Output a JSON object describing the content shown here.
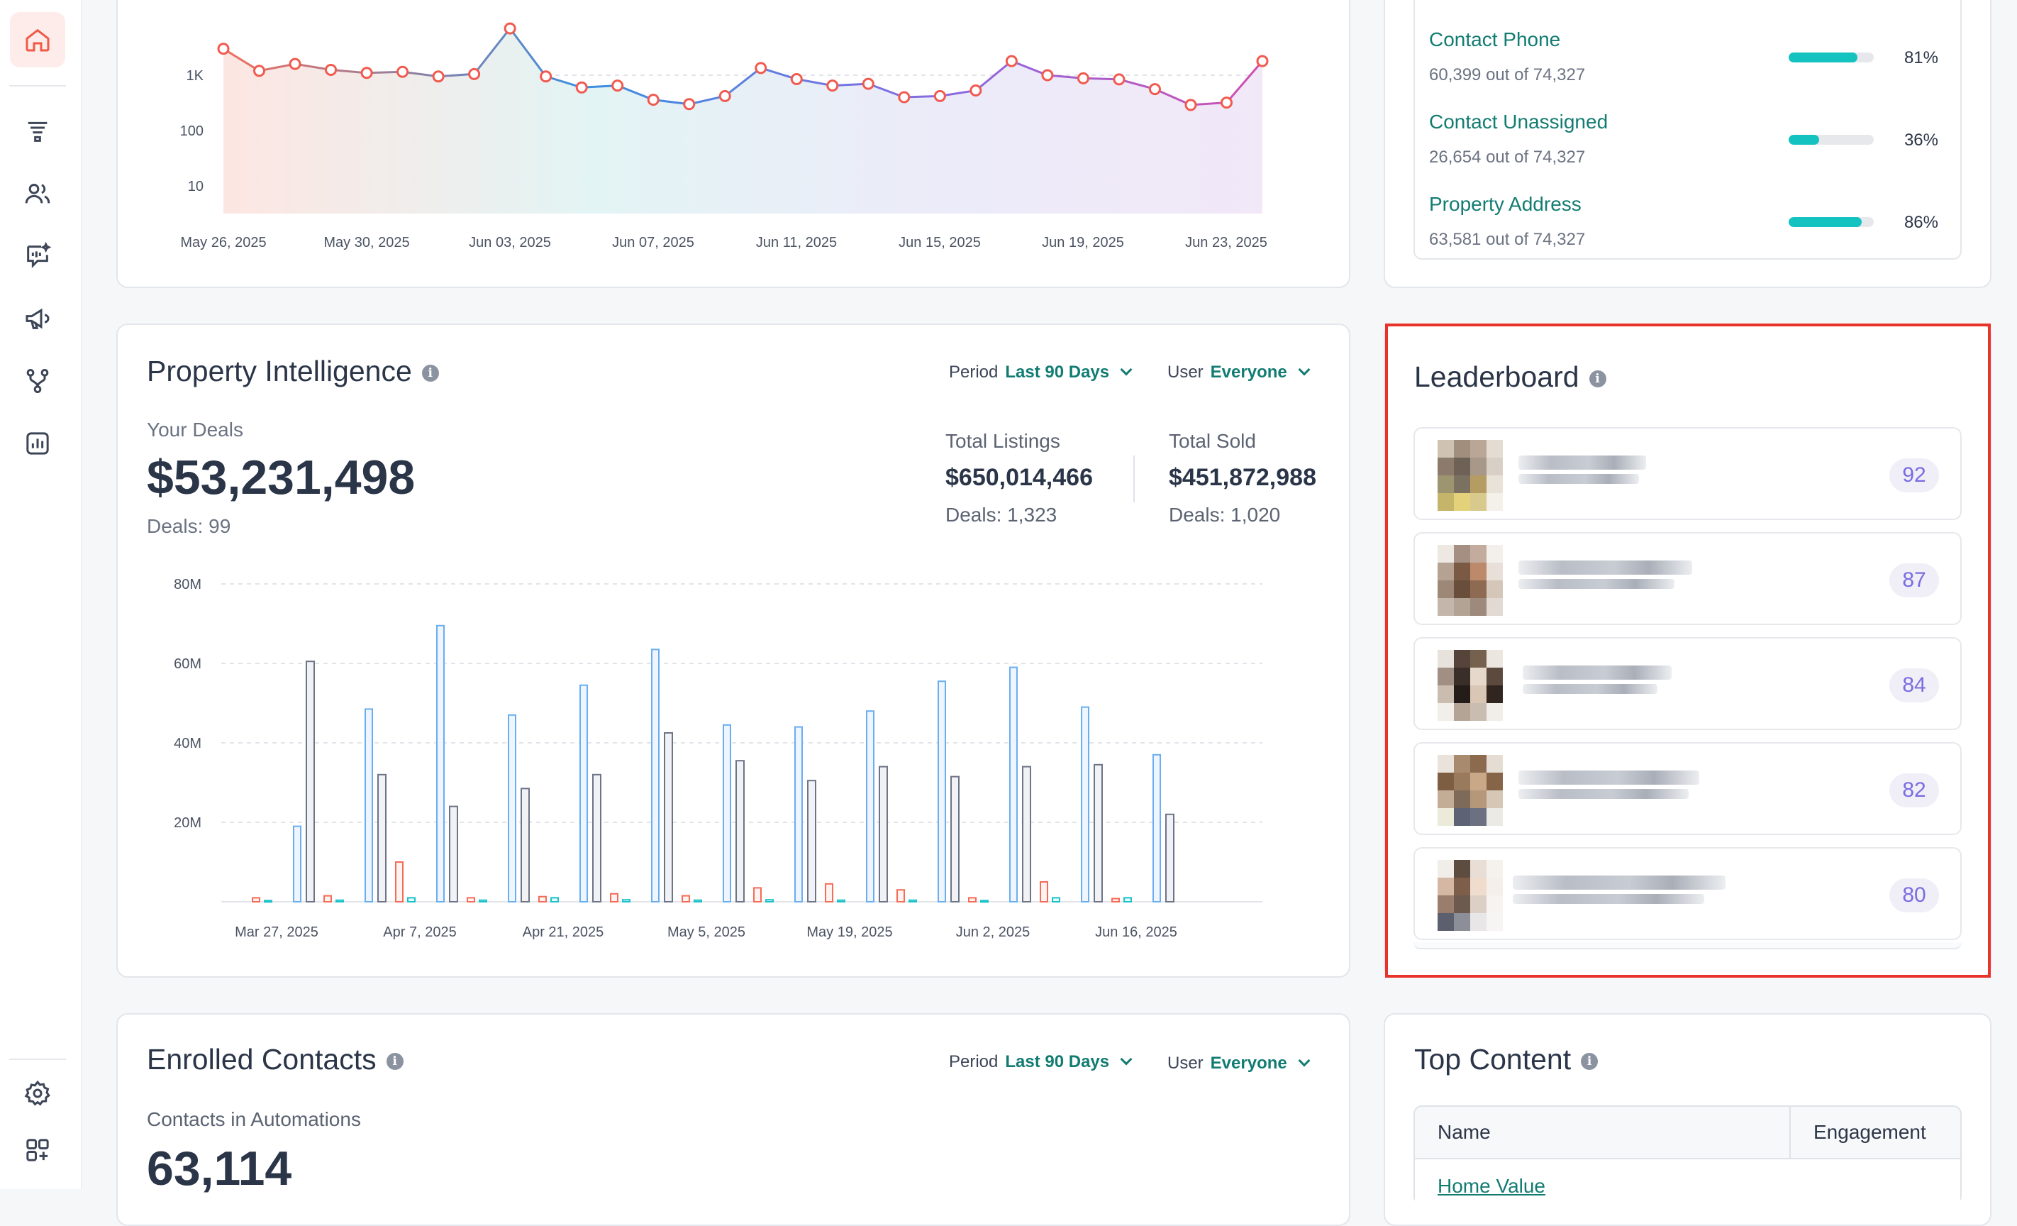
{
  "sidebar": {
    "nav_icons": [
      "home-icon",
      "funnel-icon",
      "contacts-icon",
      "ai-chat-icon",
      "megaphone-icon",
      "workflow-icon",
      "reports-icon",
      "settings-icon",
      "apps-icon"
    ]
  },
  "engagement_chart": {
    "x_ticks": [
      "May 26, 2025",
      "May 30, 2025",
      "Jun 03, 2025",
      "Jun 07, 2025",
      "Jun 11, 2025",
      "Jun 15, 2025",
      "Jun 19, 2025",
      "Jun 23, 2025"
    ],
    "y_ticks": [
      "1K",
      "100",
      "10"
    ]
  },
  "contact_stats": [
    {
      "name": "Contact Phone",
      "sub": "60,399 out of 74,327",
      "pct": "81%",
      "fill": 0.81
    },
    {
      "name": "Contact Unassigned",
      "sub": "26,654 out of 74,327",
      "pct": "36%",
      "fill": 0.36
    },
    {
      "name": "Property Address",
      "sub": "63,581 out of 74,327",
      "pct": "86%",
      "fill": 0.86
    }
  ],
  "property": {
    "title": "Property Intelligence",
    "period_label": "Period",
    "period_value": "Last 90 Days",
    "user_label": "User",
    "user_value": "Everyone",
    "your_deals_label": "Your Deals",
    "your_deals_value": "$53,231,498",
    "your_deals_count": "Deals: 99",
    "listings_label": "Total Listings",
    "listings_value": "$650,014,466",
    "listings_count": "Deals: 1,323",
    "sold_label": "Total Sold",
    "sold_value": "$451,872,988",
    "sold_count": "Deals: 1,020"
  },
  "leaderboard": {
    "title": "Leaderboard",
    "scores": [
      "92",
      "87",
      "84",
      "82",
      "80"
    ]
  },
  "enrolled": {
    "title": "Enrolled Contacts",
    "period_label": "Period",
    "period_value": "Last 90 Days",
    "user_label": "User",
    "user_value": "Everyone",
    "contacts_label": "Contacts in Automations",
    "contacts_value": "63,114"
  },
  "top_content": {
    "title": "Top Content",
    "col_name": "Name",
    "col_engagement": "Engagement",
    "first_row": "Home Value"
  },
  "chart_data": [
    {
      "type": "line",
      "scale": "log",
      "x_ticks": [
        "May 26, 2025",
        "May 30, 2025",
        "Jun 03, 2025",
        "Jun 07, 2025",
        "Jun 11, 2025",
        "Jun 15, 2025",
        "Jun 19, 2025",
        "Jun 23, 2025"
      ],
      "y_ticks": [
        "1K",
        "100",
        "10"
      ],
      "values": [
        3000,
        1200,
        1600,
        1250,
        1100,
        1150,
        950,
        1050,
        7000,
        950,
        600,
        650,
        360,
        300,
        420,
        1350,
        850,
        650,
        700,
        400,
        420,
        530,
        1800,
        1000,
        880,
        840,
        560,
        290,
        320,
        1800
      ]
    },
    {
      "type": "bar",
      "x_ticks": [
        "Mar 27, 2025",
        "Apr 7, 2025",
        "Apr 21, 2025",
        "May 5, 2025",
        "May 19, 2025",
        "Jun 2, 2025",
        "Jun 16, 2025"
      ],
      "y_ticks": [
        "80M",
        "60M",
        "40M",
        "20M"
      ],
      "ylim": [
        0,
        80
      ],
      "series": [
        {
          "color": "#f46b57",
          "values": [
            1,
            1.5,
            10,
            1,
            1.3,
            2,
            1.5,
            3.5,
            4.5,
            3,
            1,
            5,
            0.8
          ]
        },
        {
          "color": "#1cc2c8",
          "values": [
            0.3,
            0.4,
            1,
            0.4,
            1,
            0.5,
            0.4,
            0.5,
            0.4,
            0.4,
            0.3,
            1,
            1
          ]
        },
        {
          "color": "#6aaef0",
          "values": [
            19,
            48.5,
            69.5,
            47,
            54.5,
            63.5,
            44.5,
            44,
            48,
            55.5,
            59,
            49,
            37
          ]
        },
        {
          "color": "#6d7486",
          "values": [
            60.5,
            32,
            24,
            28.5,
            32,
            42.5,
            35.5,
            30.5,
            34,
            31.5,
            34,
            34.5,
            22
          ]
        }
      ]
    }
  ]
}
